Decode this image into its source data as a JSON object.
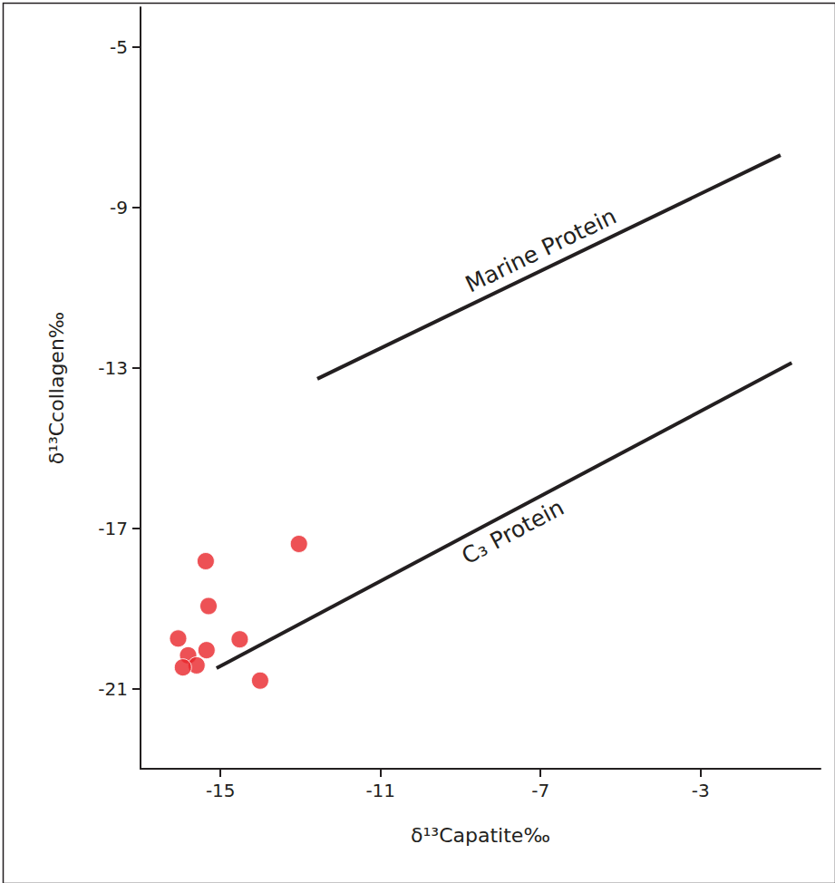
{
  "chart_data": {
    "type": "scatter",
    "x_label": "δ¹³Capatite‰",
    "y_label": "δ¹³Ccollagen‰",
    "xlim": [
      -17,
      0
    ],
    "ylim": [
      -23,
      -4
    ],
    "xticks": [
      -15,
      -11,
      -7,
      -3
    ],
    "yticks": [
      -21,
      -17,
      -13,
      -9,
      -5
    ],
    "grid": false,
    "series": [
      {
        "name": "Marine Protein",
        "type": "line",
        "color": "#231f20",
        "line_style": "solid",
        "x": [
          -12.58,
          -1.0
        ],
        "values": [
          -13.27,
          -7.69
        ]
      },
      {
        "name": "C₃ Protein",
        "type": "line",
        "color": "#231f20",
        "line_style": "solid",
        "x": [
          -15.1,
          -0.72
        ],
        "values": [
          -20.49,
          -12.87
        ]
      },
      {
        "type": "scatter",
        "color": "#e8262a",
        "marker": "circle",
        "x": [
          -15.37,
          -13.04,
          -15.3,
          -16.06,
          -14.52,
          -15.35,
          -15.81,
          -15.6,
          -15.94,
          -14.01
        ],
        "values": [
          -17.82,
          -17.39,
          -18.94,
          -19.75,
          -19.77,
          -20.04,
          -20.17,
          -20.42,
          -20.47,
          -20.8
        ]
      }
    ]
  }
}
